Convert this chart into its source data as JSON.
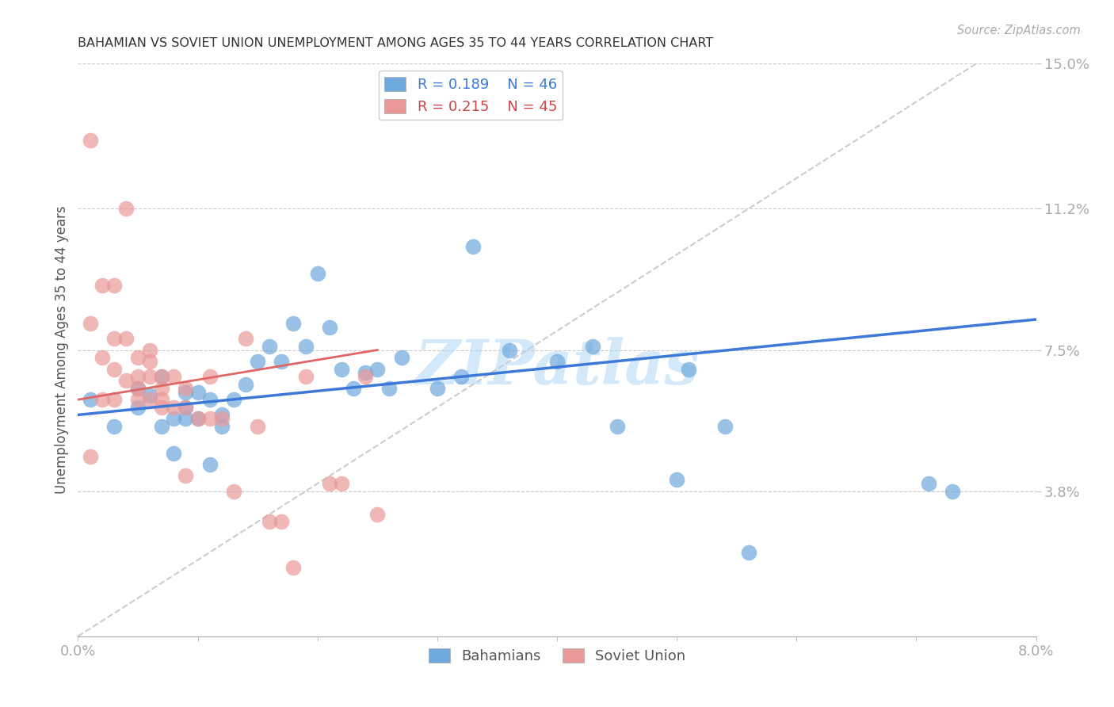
{
  "title": "BAHAMIAN VS SOVIET UNION UNEMPLOYMENT AMONG AGES 35 TO 44 YEARS CORRELATION CHART",
  "source": "Source: ZipAtlas.com",
  "ylabel": "Unemployment Among Ages 35 to 44 years",
  "xlim": [
    0.0,
    0.08
  ],
  "ylim": [
    0.0,
    0.15
  ],
  "xticks": [
    0.0,
    0.01,
    0.02,
    0.03,
    0.04,
    0.05,
    0.06,
    0.07,
    0.08
  ],
  "yticks_right": [
    0.038,
    0.075,
    0.112,
    0.15
  ],
  "yticklabels_right": [
    "3.8%",
    "7.5%",
    "11.2%",
    "15.0%"
  ],
  "r_bahamian": 0.189,
  "n_bahamian": 46,
  "r_soviet": 0.215,
  "n_soviet": 45,
  "bahamian_color": "#6fa8dc",
  "soviet_color": "#ea9999",
  "bahamian_line_color": "#3c78d8",
  "soviet_line_color": "#e06666",
  "ref_line_color": "#cccccc",
  "watermark": "ZIPatlas",
  "watermark_color": "#a8d4f5",
  "background_color": "#ffffff",
  "bahamian_x": [
    0.001,
    0.003,
    0.005,
    0.005,
    0.006,
    0.007,
    0.007,
    0.008,
    0.008,
    0.009,
    0.009,
    0.009,
    0.01,
    0.01,
    0.011,
    0.011,
    0.012,
    0.012,
    0.013,
    0.014,
    0.015,
    0.016,
    0.017,
    0.018,
    0.019,
    0.02,
    0.021,
    0.022,
    0.023,
    0.024,
    0.025,
    0.026,
    0.027,
    0.03,
    0.032,
    0.033,
    0.036,
    0.04,
    0.043,
    0.045,
    0.05,
    0.051,
    0.054,
    0.056,
    0.071,
    0.073
  ],
  "bahamian_y": [
    0.062,
    0.055,
    0.065,
    0.06,
    0.063,
    0.055,
    0.068,
    0.057,
    0.048,
    0.064,
    0.06,
    0.057,
    0.064,
    0.057,
    0.062,
    0.045,
    0.058,
    0.055,
    0.062,
    0.066,
    0.072,
    0.076,
    0.072,
    0.082,
    0.076,
    0.095,
    0.081,
    0.07,
    0.065,
    0.069,
    0.07,
    0.065,
    0.073,
    0.065,
    0.068,
    0.102,
    0.075,
    0.072,
    0.076,
    0.055,
    0.041,
    0.07,
    0.055,
    0.022,
    0.04,
    0.038
  ],
  "soviet_x": [
    0.001,
    0.001,
    0.001,
    0.002,
    0.002,
    0.002,
    0.003,
    0.003,
    0.003,
    0.003,
    0.004,
    0.004,
    0.004,
    0.005,
    0.005,
    0.005,
    0.005,
    0.006,
    0.006,
    0.006,
    0.006,
    0.007,
    0.007,
    0.007,
    0.007,
    0.008,
    0.008,
    0.009,
    0.009,
    0.009,
    0.01,
    0.011,
    0.011,
    0.012,
    0.013,
    0.014,
    0.015,
    0.016,
    0.017,
    0.018,
    0.019,
    0.021,
    0.022,
    0.024,
    0.025
  ],
  "soviet_y": [
    0.13,
    0.082,
    0.047,
    0.092,
    0.073,
    0.062,
    0.092,
    0.078,
    0.07,
    0.062,
    0.112,
    0.078,
    0.067,
    0.073,
    0.068,
    0.065,
    0.062,
    0.075,
    0.072,
    0.068,
    0.062,
    0.068,
    0.065,
    0.062,
    0.06,
    0.068,
    0.06,
    0.065,
    0.06,
    0.042,
    0.057,
    0.068,
    0.057,
    0.057,
    0.038,
    0.078,
    0.055,
    0.03,
    0.03,
    0.018,
    0.068,
    0.04,
    0.04,
    0.068,
    0.032
  ],
  "bah_trend_x": [
    0.0,
    0.08
  ],
  "bah_trend_y": [
    0.058,
    0.083
  ],
  "sov_trend_x": [
    0.0,
    0.025
  ],
  "sov_trend_y": [
    0.062,
    0.075
  ]
}
